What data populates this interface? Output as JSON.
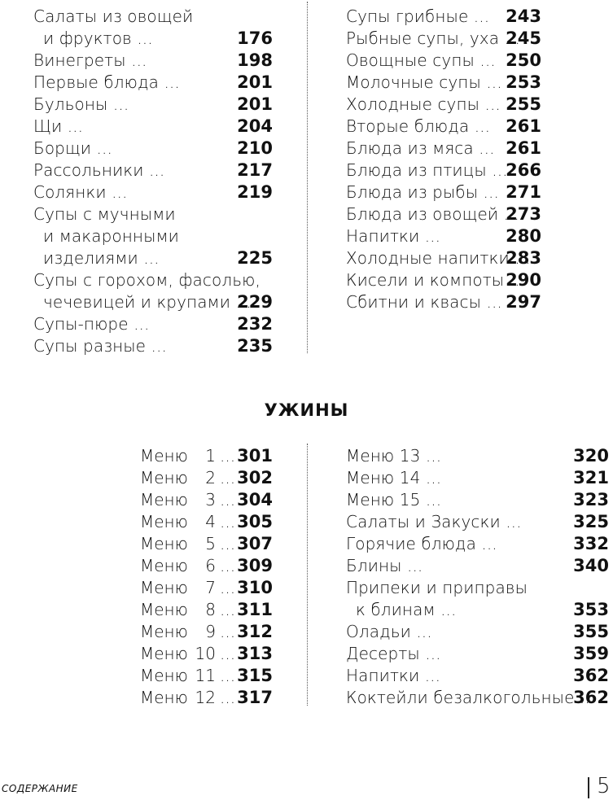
{
  "top_left": [
    {
      "lines": [
        "Салаты из овощей",
        "и фруктов ..."
      ],
      "page": "176"
    },
    {
      "lines": [
        "Винегреты ..."
      ],
      "page": "198"
    },
    {
      "lines": [
        "Первые блюда ..."
      ],
      "page": "201"
    },
    {
      "lines": [
        "Бульоны ..."
      ],
      "page": "201"
    },
    {
      "lines": [
        "Щи ..."
      ],
      "page": "204"
    },
    {
      "lines": [
        "Борщи ..."
      ],
      "page": "210"
    },
    {
      "lines": [
        "Рассольники ..."
      ],
      "page": "217"
    },
    {
      "lines": [
        "Солянки ..."
      ],
      "page": "219"
    },
    {
      "lines": [
        "Супы с мучными",
        "и макаронными",
        "изделиями ..."
      ],
      "page": "225"
    },
    {
      "lines": [
        "Супы с горохом, фасолью,",
        "чечевицей и крупами ..."
      ],
      "page": "229"
    },
    {
      "lines": [
        "Супы-пюре ..."
      ],
      "page": "232"
    },
    {
      "lines": [
        "Супы разные ..."
      ],
      "page": "235"
    }
  ],
  "top_right": [
    {
      "lines": [
        "Супы грибные ..."
      ],
      "page": "243"
    },
    {
      "lines": [
        "Рыбные супы, уха ..."
      ],
      "page": "245"
    },
    {
      "lines": [
        "Овощные супы ..."
      ],
      "page": "250"
    },
    {
      "lines": [
        "Молочные супы ..."
      ],
      "page": "253"
    },
    {
      "lines": [
        "Холодные супы ..."
      ],
      "page": "255"
    },
    {
      "lines": [
        "Вторые блюда ..."
      ],
      "page": "261"
    },
    {
      "lines": [
        "Блюда из мяса ..."
      ],
      "page": "261"
    },
    {
      "lines": [
        "Блюда из птицы ..."
      ],
      "page": "266"
    },
    {
      "lines": [
        "Блюда из рыбы ..."
      ],
      "page": "271"
    },
    {
      "lines": [
        "Блюда из овощей ..."
      ],
      "page": "273"
    },
    {
      "lines": [
        "Напитки ..."
      ],
      "page": "280"
    },
    {
      "lines": [
        "Холодные напитки ..."
      ],
      "page": "283"
    },
    {
      "lines": [
        "Кисели и компоты ..."
      ],
      "page": "290"
    },
    {
      "lines": [
        "Сбитни и квасы ..."
      ],
      "page": "297"
    }
  ],
  "section_heading": "УЖИНЫ",
  "bottom_left": [
    {
      "label": "Меню",
      "n": "1",
      "dots": "...",
      "page": "301"
    },
    {
      "label": "Меню",
      "n": "2",
      "dots": "...",
      "page": "302"
    },
    {
      "label": "Меню",
      "n": "3",
      "dots": "...",
      "page": "304"
    },
    {
      "label": "Меню",
      "n": "4",
      "dots": "...",
      "page": "305"
    },
    {
      "label": "Меню",
      "n": "5",
      "dots": "...",
      "page": "307"
    },
    {
      "label": "Меню",
      "n": "6",
      "dots": "...",
      "page": "309"
    },
    {
      "label": "Меню",
      "n": "7",
      "dots": "...",
      "page": "310"
    },
    {
      "label": "Меню",
      "n": "8",
      "dots": "...",
      "page": "311"
    },
    {
      "label": "Меню",
      "n": "9",
      "dots": "...",
      "page": "312"
    },
    {
      "label": "Меню",
      "n": "10",
      "dots": "...",
      "page": "313"
    },
    {
      "label": "Меню",
      "n": "11",
      "dots": "...",
      "page": "315"
    },
    {
      "label": "Меню",
      "n": "12",
      "dots": "...",
      "page": "317"
    }
  ],
  "bottom_right": [
    {
      "lines": [
        "Меню 13 ..."
      ],
      "page": "320"
    },
    {
      "lines": [
        "Меню 14 ..."
      ],
      "page": "321"
    },
    {
      "lines": [
        "Меню 15 ..."
      ],
      "page": "323"
    },
    {
      "lines": [
        "Салаты и Закуски ..."
      ],
      "page": "325"
    },
    {
      "lines": [
        "Горячие блюда ..."
      ],
      "page": "332"
    },
    {
      "lines": [
        "Блины ..."
      ],
      "page": "340"
    },
    {
      "lines": [
        "Припеки и приправы",
        "к блинам ..."
      ],
      "page": "353"
    },
    {
      "lines": [
        "Оладьи ..."
      ],
      "page": "355"
    },
    {
      "lines": [
        "Десерты ..."
      ],
      "page": "359"
    },
    {
      "lines": [
        "Напитки ..."
      ],
      "page": "362"
    },
    {
      "lines": [
        "Коктейли безалкогольные ..."
      ],
      "page": "362"
    }
  ],
  "footer": {
    "section_label": "СОДЕРЖАНИЕ",
    "page_number": "5"
  }
}
